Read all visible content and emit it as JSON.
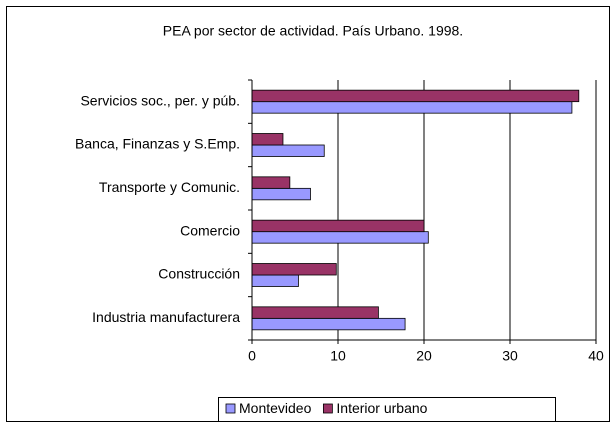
{
  "chart_data": {
    "type": "hbar",
    "title": "PEA por sector de actividad. País Urbano. 1998.",
    "categories": [
      "Servicios soc., per. y púb.",
      "Banca, Finanzas y S.Emp.",
      "Transporte y Comunic.",
      "Comercio",
      "Construcción",
      "Industria manufacturera"
    ],
    "series": [
      {
        "name": "Montevideo",
        "color": "#9999ff",
        "values": [
          37.2,
          8.4,
          6.8,
          20.5,
          5.4,
          17.8
        ]
      },
      {
        "name": "Interior urbano",
        "color": "#993366",
        "values": [
          38,
          3.6,
          4.4,
          20,
          9.8,
          14.7
        ]
      }
    ],
    "xlim": [
      0,
      40
    ],
    "xticks": [
      0,
      10,
      20,
      30,
      40
    ],
    "grid": true,
    "legend": "bottom"
  }
}
